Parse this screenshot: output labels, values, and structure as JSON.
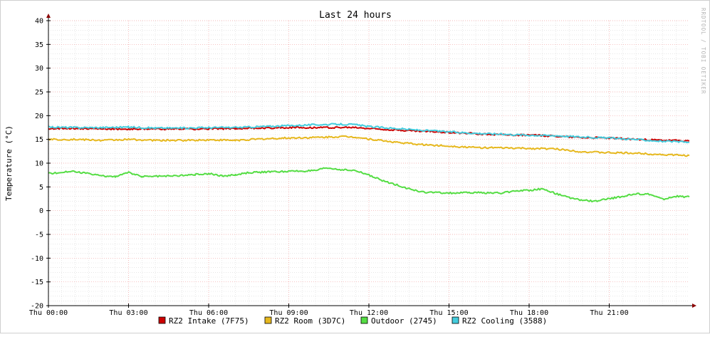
{
  "chart_data": {
    "type": "line",
    "title": "Last 24 hours",
    "ylabel": "Temperature (°C)",
    "watermark": "RRDTOOL / TOBI OETIKER",
    "ylim": [
      -20,
      40
    ],
    "yticks": [
      -20,
      -15,
      -10,
      -5,
      0,
      5,
      10,
      15,
      20,
      25,
      30,
      35,
      40
    ],
    "xlim": [
      0,
      24
    ],
    "xticks": [
      {
        "hour": 0,
        "label": "Thu 00:00"
      },
      {
        "hour": 3,
        "label": "Thu 03:00"
      },
      {
        "hour": 6,
        "label": "Thu 06:00"
      },
      {
        "hour": 9,
        "label": "Thu 09:00"
      },
      {
        "hour": 12,
        "label": "Thu 12:00"
      },
      {
        "hour": 15,
        "label": "Thu 15:00"
      },
      {
        "hour": 18,
        "label": "Thu 18:00"
      },
      {
        "hour": 21,
        "label": "Thu 21:00"
      }
    ],
    "colors": {
      "major_grid": "#f0a0a0",
      "minor_grid": "#d8d8d8",
      "axis": "#000000",
      "arrow": "#8b0000"
    },
    "series": [
      {
        "name": "RZ2 Intake (7F75)",
        "color": "#cc0000",
        "points": [
          [
            0,
            17.3
          ],
          [
            1,
            17.3
          ],
          [
            2,
            17.2
          ],
          [
            3,
            17.2
          ],
          [
            4,
            17.2
          ],
          [
            5,
            17.2
          ],
          [
            6,
            17.2
          ],
          [
            7,
            17.3
          ],
          [
            8,
            17.4
          ],
          [
            9,
            17.5
          ],
          [
            10,
            17.5
          ],
          [
            11,
            17.5
          ],
          [
            11.5,
            17.5
          ],
          [
            12,
            17.3
          ],
          [
            13,
            17.0
          ],
          [
            14,
            16.7
          ],
          [
            15,
            16.5
          ],
          [
            16,
            16.2
          ],
          [
            17,
            16.0
          ],
          [
            18,
            15.9
          ],
          [
            19,
            15.7
          ],
          [
            20,
            15.4
          ],
          [
            21,
            15.3
          ],
          [
            22,
            15.0
          ],
          [
            23,
            14.8
          ],
          [
            24,
            14.7
          ]
        ]
      },
      {
        "name": "RZ2 Room (3D7C)",
        "color": "#e6b81e",
        "points": [
          [
            0,
            15.0
          ],
          [
            1,
            15.0
          ],
          [
            2,
            14.8
          ],
          [
            3,
            15.0
          ],
          [
            4,
            14.8
          ],
          [
            5,
            14.8
          ],
          [
            6,
            14.9
          ],
          [
            7,
            14.8
          ],
          [
            8,
            15.1
          ],
          [
            9,
            15.3
          ],
          [
            10,
            15.4
          ],
          [
            11,
            15.6
          ],
          [
            11.5,
            15.5
          ],
          [
            12,
            15.1
          ],
          [
            13,
            14.4
          ],
          [
            14,
            13.9
          ],
          [
            15,
            13.6
          ],
          [
            16,
            13.3
          ],
          [
            17,
            13.2
          ],
          [
            18,
            13.1
          ],
          [
            19,
            13.0
          ],
          [
            20,
            12.4
          ],
          [
            21,
            12.2
          ],
          [
            22,
            12.1
          ],
          [
            23,
            11.8
          ],
          [
            24,
            11.6
          ]
        ]
      },
      {
        "name": "Outdoor (2745)",
        "color": "#55dd44",
        "points": [
          [
            0,
            7.8
          ],
          [
            0.8,
            8.3
          ],
          [
            1.5,
            7.8
          ],
          [
            2,
            7.3
          ],
          [
            2.5,
            7.2
          ],
          [
            3,
            8.0
          ],
          [
            3.5,
            7.2
          ],
          [
            4.5,
            7.3
          ],
          [
            5.5,
            7.6
          ],
          [
            6,
            7.8
          ],
          [
            6.5,
            7.3
          ],
          [
            7,
            7.5
          ],
          [
            7.5,
            8.0
          ],
          [
            8.5,
            8.2
          ],
          [
            9,
            8.3
          ],
          [
            10,
            8.4
          ],
          [
            10.4,
            9.0
          ],
          [
            11,
            8.6
          ],
          [
            11.5,
            8.4
          ],
          [
            12,
            7.5
          ],
          [
            12.5,
            6.3
          ],
          [
            13,
            5.5
          ],
          [
            13.5,
            4.6
          ],
          [
            14,
            3.9
          ],
          [
            15,
            3.7
          ],
          [
            16,
            3.8
          ],
          [
            17,
            3.7
          ],
          [
            17.5,
            4.2
          ],
          [
            18,
            4.3
          ],
          [
            18.5,
            4.6
          ],
          [
            19,
            3.6
          ],
          [
            19.5,
            2.7
          ],
          [
            20,
            2.2
          ],
          [
            20.5,
            2.0
          ],
          [
            21,
            2.5
          ],
          [
            21.5,
            3.0
          ],
          [
            22,
            3.5
          ],
          [
            22.5,
            3.5
          ],
          [
            23,
            2.4
          ],
          [
            23.5,
            3.0
          ],
          [
            24,
            2.9
          ]
        ]
      },
      {
        "name": "RZ2 Cooling (3588)",
        "color": "#44ccdd",
        "points": [
          [
            0,
            17.6
          ],
          [
            1,
            17.5
          ],
          [
            2,
            17.5
          ],
          [
            3,
            17.6
          ],
          [
            4,
            17.4
          ],
          [
            5,
            17.4
          ],
          [
            6,
            17.5
          ],
          [
            7,
            17.5
          ],
          [
            8,
            17.7
          ],
          [
            9,
            17.9
          ],
          [
            10,
            18.1
          ],
          [
            11,
            18.2
          ],
          [
            11.5,
            18.1
          ],
          [
            12,
            17.7
          ],
          [
            13,
            17.3
          ],
          [
            14,
            16.9
          ],
          [
            15,
            16.6
          ],
          [
            16,
            16.3
          ],
          [
            17,
            16.1
          ],
          [
            18,
            15.9
          ],
          [
            19,
            15.8
          ],
          [
            20,
            15.5
          ],
          [
            21,
            15.3
          ],
          [
            22,
            15.0
          ],
          [
            23,
            14.6
          ],
          [
            24,
            14.4
          ]
        ]
      }
    ]
  }
}
